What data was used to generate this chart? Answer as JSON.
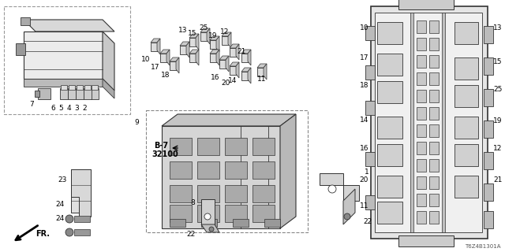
{
  "bg_color": "#ffffff",
  "diagram_id": "T6Z4B1301A",
  "line_color": "#333333",
  "light_gray": "#cccccc",
  "mid_gray": "#aaaaaa",
  "dark_gray": "#555555"
}
